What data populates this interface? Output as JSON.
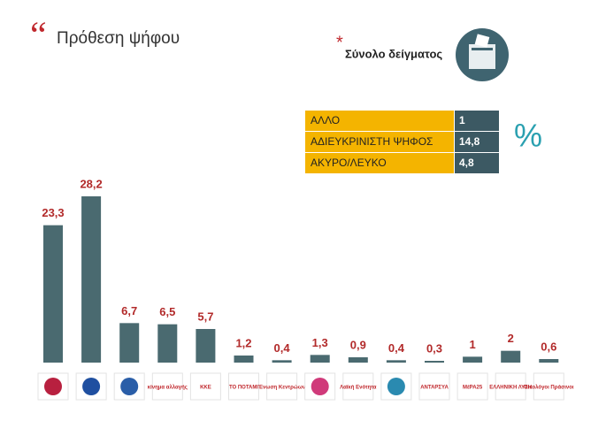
{
  "chart_data": {
    "type": "bar",
    "title": "Πρόθεση ψήφου",
    "subtitle": "Σύνολο δείγματος",
    "categories": [
      null,
      null,
      null,
      "κίνημα αλλαγής",
      "ΚΚΕ",
      "ΤΟ ΠΟΤΑΜΙ",
      "Ένωση Κεντρώων",
      null,
      "Λαϊκή Ενότητα",
      null,
      "ΑΝΤΑΡΣΥΑ",
      "ΜέΡΑ25",
      "ΕΛΛΗΝΙΚΗ ΛΥΣΗ",
      "Οικολόγοι Πράσινοι"
    ],
    "values": [
      23.3,
      28.2,
      6.7,
      6.5,
      5.7,
      1.2,
      0.4,
      1.3,
      0.9,
      0.4,
      0.3,
      1,
      2,
      0.6
    ],
    "value_labels": [
      "23,3",
      "28,2",
      "6,7",
      "6,5",
      "5,7",
      "1,2",
      "0,4",
      "1,3",
      "0,9",
      "0,4",
      "0,3",
      "1",
      "2",
      "0,6"
    ],
    "color": "#4a6a70",
    "label_color": "#b22a2a"
  },
  "table": {
    "rows": [
      [
        "ΑΛΛΟ",
        "1"
      ],
      [
        "ΑΔΙΕΥΚΡΙΝΙΣΤΗ ΨΗΦΟΣ",
        "14,8"
      ],
      [
        "ΑΚΥΡΟ/ΛΕΥΚΟ",
        "4,8"
      ]
    ],
    "unit": "%"
  }
}
